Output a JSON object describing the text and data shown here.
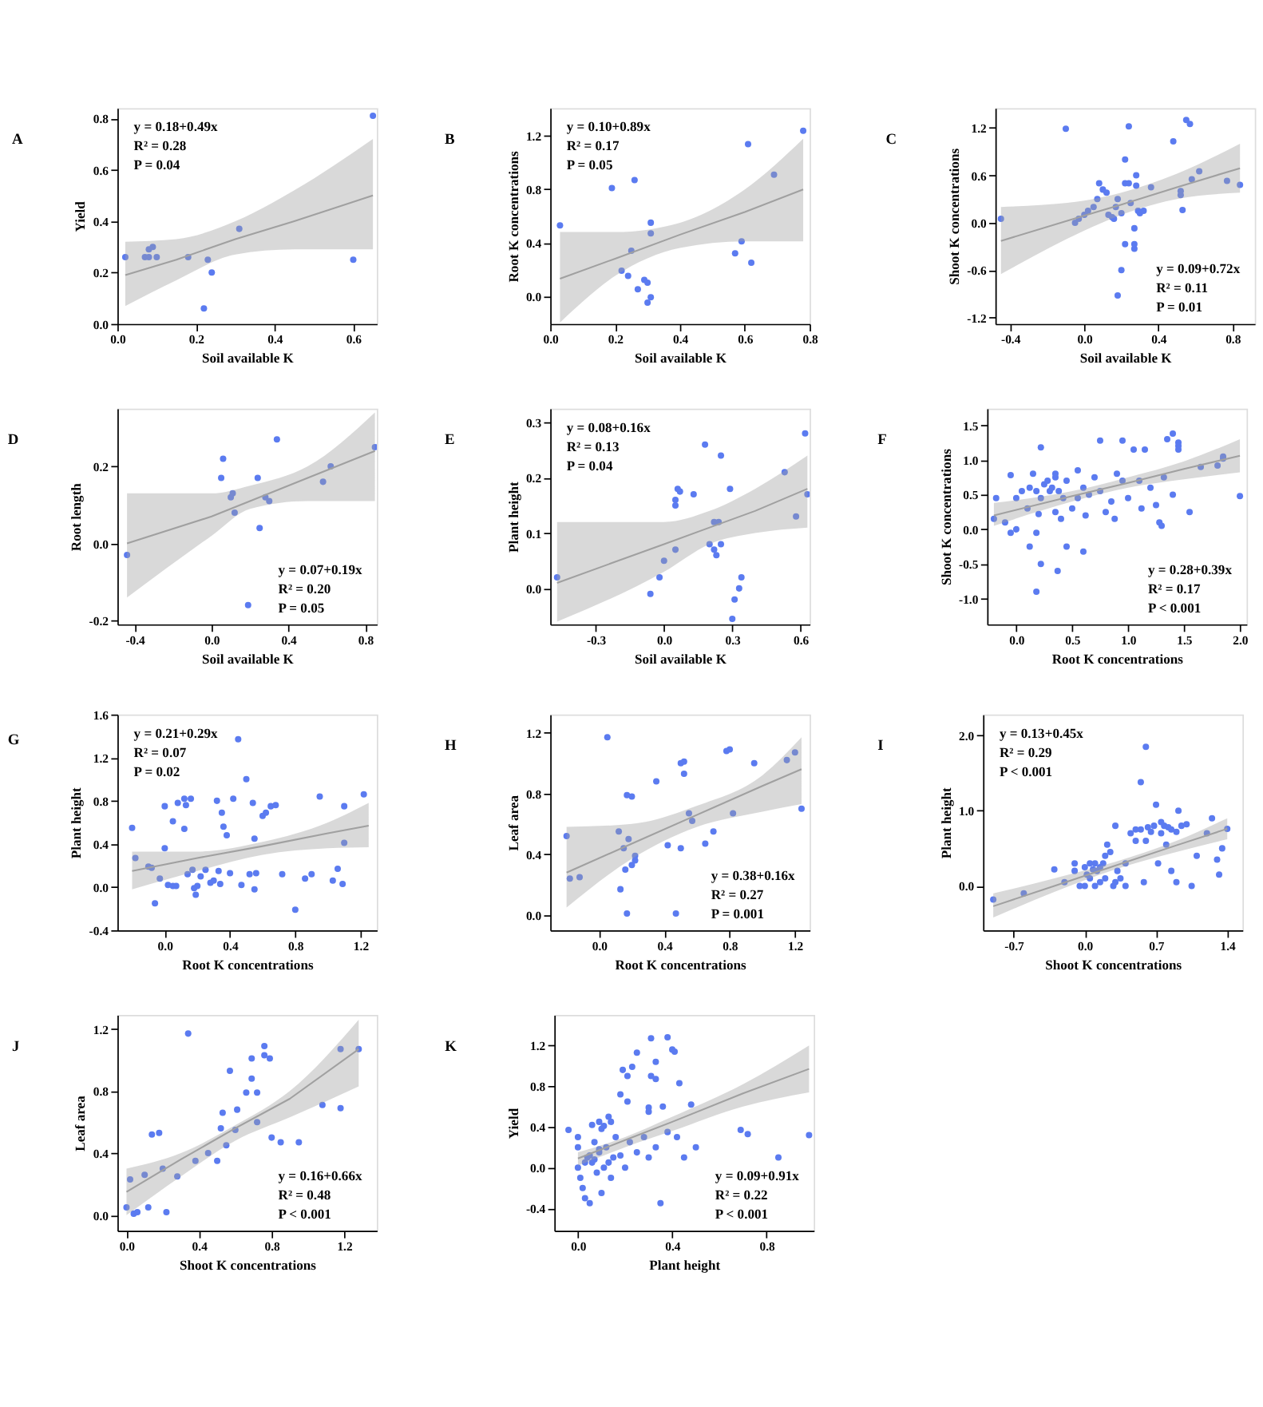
{
  "chart_data": [
    {
      "type": "scatter",
      "title": "A",
      "xlabel": "Soil available K",
      "ylabel": "Yield",
      "xlim": [
        0,
        0.66
      ],
      "ylim": [
        0,
        0.84
      ],
      "xticks": [
        {
          "value": 0,
          "label": "0.0"
        },
        0.2,
        0.4,
        0.6
      ],
      "yticks": [
        {
          "value": 0,
          "label": "0.0"
        },
        0.2,
        0.4,
        0.6,
        0.8
      ],
      "annotations": [
        "y = 0.18+0.49x",
        "R² = 0.28",
        "P = 0.04"
      ],
      "series": [
        {
          "type": "scatter",
          "color": "#5b7bf0",
          "x": [
            0.02,
            0.07,
            0.08,
            0.09,
            0.08,
            0.1,
            0.18,
            0.23,
            0.24,
            0.22,
            0.31,
            0.6,
            0.65
          ],
          "values": [
            0.26,
            0.26,
            0.29,
            0.3,
            0.26,
            0.26,
            0.26,
            0.25,
            0.2,
            0.06,
            0.37,
            0.25,
            0.81
          ]
        },
        {
          "type": "line",
          "color": "#a0a0a0",
          "x": [
            0.02,
            0.15,
            0.3,
            0.45,
            0.65
          ],
          "values": [
            0.19,
            0.25,
            0.33,
            0.4,
            0.5
          ],
          "lower": [
            0.07,
            0.17,
            0.27,
            0.29,
            0.29
          ],
          "upper": [
            0.32,
            0.33,
            0.4,
            0.52,
            0.72
          ]
        }
      ]
    },
    {
      "type": "scatter",
      "title": "B",
      "xlabel": "Soil available K",
      "ylabel": "Root K concentrations",
      "xlim": [
        0,
        0.8
      ],
      "ylim": [
        -0.21,
        1.41
      ],
      "xticks": [
        {
          "value": 0,
          "label": "0.0"
        },
        0.2,
        0.4,
        0.6,
        0.8
      ],
      "yticks": [
        {
          "value": 0,
          "label": "0.0"
        },
        0.4,
        0.8,
        1.2
      ],
      "annotations": [
        "y = 0.10+0.89x",
        "R² = 0.17",
        "P = 0.05"
      ],
      "series": [
        {
          "type": "scatter",
          "color": "#5b7bf0",
          "x": [
            0.03,
            0.19,
            0.26,
            0.22,
            0.24,
            0.25,
            0.27,
            0.29,
            0.3,
            0.3,
            0.31,
            0.31,
            0.31,
            0.57,
            0.59,
            0.61,
            0.62,
            0.69,
            0.78
          ],
          "values": [
            0.53,
            0.81,
            0.87,
            0.19,
            0.15,
            0.34,
            0.05,
            0.12,
            0.1,
            -0.05,
            -0.01,
            0.55,
            0.47,
            0.32,
            0.41,
            1.14,
            0.25,
            0.91,
            1.24
          ]
        },
        {
          "type": "line",
          "color": "#a0a0a0",
          "x": [
            0.03,
            0.2,
            0.4,
            0.6,
            0.78
          ],
          "values": [
            0.13,
            0.28,
            0.46,
            0.63,
            0.8
          ],
          "lower": [
            -0.2,
            0.15,
            0.36,
            0.41,
            0.41
          ],
          "upper": [
            0.48,
            0.48,
            0.55,
            0.8,
            1.18
          ]
        }
      ]
    },
    {
      "type": "scatter",
      "title": "C",
      "xlabel": "Soil available K",
      "ylabel": "Shoot K concentrations",
      "xlim": [
        -0.48,
        0.92
      ],
      "ylim": [
        -1.28,
        1.45
      ],
      "xticks": [
        -0.4,
        {
          "value": 0,
          "label": "0.0"
        },
        0.4,
        0.8
      ],
      "yticks": [
        -1.2,
        -0.6,
        {
          "value": 0,
          "label": "0.0"
        },
        0.6,
        1.2
      ],
      "annotations": [
        "y = 0.09+0.72x",
        "R² = 0.11",
        "P = 0.01"
      ],
      "series": [
        {
          "type": "scatter",
          "color": "#5b7bf0",
          "x": [
            -0.45,
            -0.1,
            -0.05,
            -0.03,
            0.0,
            0.02,
            0.05,
            0.07,
            0.08,
            0.1,
            0.12,
            0.13,
            0.15,
            0.16,
            0.17,
            0.18,
            0.18,
            0.2,
            0.2,
            0.22,
            0.22,
            0.24,
            0.24,
            0.25,
            0.27,
            0.27,
            0.27,
            0.28,
            0.28,
            0.29,
            0.3,
            0.32,
            0.22,
            0.36,
            0.48,
            0.52,
            0.52,
            0.53,
            0.55,
            0.57,
            0.58,
            0.62,
            0.77,
            0.84
          ],
          "values": [
            0.05,
            1.19,
            0.0,
            0.05,
            0.1,
            0.15,
            0.2,
            0.3,
            0.5,
            0.42,
            0.38,
            0.1,
            0.07,
            0.05,
            0.2,
            0.3,
            -0.92,
            -0.6,
            0.12,
            0.5,
            0.8,
            1.22,
            0.5,
            0.25,
            -0.33,
            -0.27,
            -0.07,
            0.6,
            0.47,
            0.15,
            0.12,
            0.15,
            -0.27,
            0.45,
            1.03,
            0.35,
            0.4,
            0.16,
            1.3,
            1.25,
            0.55,
            0.65,
            0.53,
            0.48
          ]
        },
        {
          "type": "line",
          "color": "#a0a0a0",
          "x": [
            -0.45,
            0.0,
            0.2,
            0.5,
            0.84
          ],
          "values": [
            -0.23,
            0.09,
            0.23,
            0.45,
            0.69
          ],
          "lower": [
            -0.65,
            -0.1,
            0.1,
            0.3,
            0.38
          ],
          "upper": [
            0.2,
            0.28,
            0.38,
            0.62,
            1.0
          ]
        }
      ]
    },
    {
      "type": "scatter",
      "title": "D",
      "xlabel": "Soil available K",
      "ylabel": "Root length",
      "xlim": [
        -0.49,
        0.86
      ],
      "ylim": [
        -0.21,
        0.35
      ],
      "xticks": [
        -0.4,
        {
          "value": 0,
          "label": "0.0"
        },
        0.4,
        0.8
      ],
      "yticks": [
        -0.2,
        {
          "value": 0,
          "label": "0.0"
        },
        0.2
      ],
      "annotations": [
        "y = 0.07+0.19x",
        "R² = 0.20",
        "P = 0.05"
      ],
      "series": [
        {
          "type": "scatter",
          "color": "#5b7bf0",
          "x": [
            -0.44,
            0.05,
            0.06,
            0.1,
            0.12,
            0.11,
            0.19,
            0.24,
            0.25,
            0.28,
            0.3,
            0.34,
            0.58,
            0.62,
            0.85
          ],
          "values": [
            -0.03,
            0.17,
            0.22,
            0.12,
            0.08,
            0.13,
            -0.16,
            0.17,
            0.04,
            0.12,
            0.11,
            0.27,
            0.16,
            0.2,
            0.25
          ]
        },
        {
          "type": "line",
          "color": "#a0a0a0",
          "x": [
            -0.44,
            0.0,
            0.2,
            0.5,
            0.85
          ],
          "values": [
            0.0,
            0.07,
            0.11,
            0.17,
            0.24
          ],
          "lower": [
            -0.14,
            0.02,
            0.09,
            0.11,
            0.11
          ],
          "upper": [
            0.13,
            0.13,
            0.15,
            0.2,
            0.34
          ]
        }
      ]
    },
    {
      "type": "scatter",
      "title": "E",
      "xlabel": "Soil available K",
      "ylabel": "Plant height",
      "xlim": [
        -0.5,
        0.64
      ],
      "ylim": [
        -0.065,
        0.325
      ],
      "xticks": [
        -0.3,
        {
          "value": 0,
          "label": "0.0"
        },
        0.3,
        0.6
      ],
      "yticks": [
        {
          "value": 0,
          "label": "0.0"
        },
        0.1,
        0.2,
        0.3
      ],
      "annotations": [
        "y = 0.08+0.16x",
        "R² = 0.13",
        "P = 0.04"
      ],
      "series": [
        {
          "type": "scatter",
          "color": "#5b7bf0",
          "x": [
            -0.47,
            -0.06,
            -0.02,
            0.0,
            0.05,
            0.05,
            0.06,
            0.07,
            0.05,
            0.13,
            0.18,
            0.2,
            0.22,
            0.22,
            0.23,
            0.24,
            0.25,
            0.25,
            0.29,
            0.31,
            0.33,
            0.34,
            0.3,
            0.53,
            0.58,
            0.62,
            0.63
          ],
          "values": [
            0.02,
            -0.01,
            0.02,
            0.05,
            0.15,
            0.16,
            0.18,
            0.175,
            0.07,
            0.17,
            0.26,
            0.08,
            0.07,
            0.12,
            0.06,
            0.12,
            0.24,
            0.08,
            0.18,
            -0.02,
            0.0,
            0.02,
            -0.055,
            0.21,
            0.13,
            0.28,
            0.17
          ]
        },
        {
          "type": "line",
          "color": "#a0a0a0",
          "x": [
            -0.47,
            0.0,
            0.2,
            0.4,
            0.63
          ],
          "values": [
            0.01,
            0.08,
            0.11,
            0.14,
            0.18
          ],
          "lower": [
            -0.06,
            0.03,
            0.08,
            0.1,
            0.11
          ],
          "upper": [
            0.12,
            0.12,
            0.14,
            0.18,
            0.24
          ]
        }
      ]
    },
    {
      "type": "scatter",
      "title": "F",
      "xlabel": "Root K concentrations",
      "ylabel": "Shoot K concentrations",
      "xlim": [
        -0.26,
        2.06
      ],
      "ylim": [
        -1.37,
        1.74
      ],
      "xticks": [
        {
          "value": 0,
          "label": "0.0"
        },
        0.5,
        {
          "value": 1,
          "label": "1.0"
        },
        1.5,
        {
          "value": 2,
          "label": "2.0"
        }
      ],
      "yticks": [
        {
          "value": -1,
          "label": "-1.0"
        },
        -0.5,
        {
          "value": 0,
          "label": "0.0"
        },
        0.5,
        {
          "value": 1,
          "label": "1.0"
        },
        1.5
      ],
      "annotations": [
        "y = 0.28+0.39x",
        "R² = 0.17",
        "P < 0.001"
      ],
      "series": [
        {
          "type": "scatter",
          "color": "#5b7bf0",
          "x": [
            -0.2,
            -0.18,
            -0.1,
            -0.05,
            -0.05,
            0.0,
            0.0,
            0.05,
            0.1,
            0.12,
            0.12,
            0.15,
            0.18,
            0.18,
            0.2,
            0.22,
            0.22,
            0.22,
            0.25,
            0.28,
            0.3,
            0.32,
            0.35,
            0.35,
            0.35,
            0.37,
            0.38,
            0.4,
            0.42,
            0.45,
            0.45,
            0.5,
            0.55,
            0.55,
            0.6,
            0.6,
            0.62,
            0.65,
            0.7,
            0.75,
            0.75,
            0.8,
            0.85,
            0.88,
            0.9,
            0.95,
            0.95,
            1.0,
            1.05,
            1.1,
            1.12,
            1.15,
            1.2,
            1.25,
            1.28,
            1.3,
            1.32,
            1.35,
            1.4,
            1.45,
            1.45,
            1.45,
            1.4,
            1.55,
            1.65,
            1.8,
            1.85,
            1.85,
            2.0,
            0.18
          ],
          "values": [
            0.15,
            0.45,
            0.1,
            0.78,
            -0.05,
            0.0,
            0.45,
            0.55,
            0.3,
            -0.25,
            0.6,
            0.8,
            0.55,
            -0.05,
            0.22,
            1.18,
            -0.5,
            0.45,
            0.65,
            0.7,
            0.55,
            0.6,
            0.8,
            0.75,
            0.25,
            -0.6,
            0.55,
            0.15,
            0.45,
            -0.25,
            0.7,
            0.3,
            0.45,
            0.85,
            -0.32,
            0.6,
            0.2,
            0.5,
            0.75,
            1.28,
            0.55,
            0.25,
            0.4,
            0.15,
            0.8,
            1.28,
            0.7,
            0.45,
            1.15,
            0.7,
            0.3,
            1.15,
            0.6,
            0.35,
            0.1,
            0.05,
            0.75,
            1.3,
            1.38,
            1.25,
            1.2,
            1.15,
            0.5,
            0.25,
            0.9,
            0.92,
            1.05,
            1.02,
            0.48,
            -0.9
          ]
        },
        {
          "type": "line",
          "color": "#a0a0a0",
          "x": [
            -0.2,
            0.5,
            1.0,
            1.5,
            2.0
          ],
          "values": [
            0.2,
            0.48,
            0.67,
            0.87,
            1.06
          ],
          "lower": [
            0.05,
            0.4,
            0.6,
            0.72,
            0.82
          ],
          "upper": [
            0.38,
            0.55,
            0.75,
            0.98,
            1.3
          ]
        }
      ]
    },
    {
      "type": "scatter",
      "title": "G",
      "xlabel": "Root K concentrations",
      "ylabel": "Plant height",
      "xlim": [
        -0.29,
        1.3
      ],
      "ylim": [
        -0.4,
        1.6
      ],
      "xticks": [
        {
          "value": 0,
          "label": "0.0"
        },
        0.4,
        0.8,
        1.2
      ],
      "yticks": [
        -0.4,
        {
          "value": 0,
          "label": "0.0"
        },
        0.4,
        0.8,
        1.2,
        1.6
      ],
      "annotations": [
        "y = 0.21+0.29x",
        "R² = 0.07",
        "P = 0.02"
      ],
      "series": [
        {
          "type": "scatter",
          "color": "#5b7bf0",
          "x": [
            -0.2,
            -0.18,
            -0.1,
            -0.08,
            -0.06,
            -0.03,
            0.0,
            0.02,
            0.05,
            0.07,
            0.0,
            0.05,
            0.08,
            0.12,
            0.13,
            0.12,
            0.14,
            0.16,
            0.17,
            0.18,
            0.19,
            0.2,
            0.22,
            0.25,
            0.28,
            0.3,
            0.32,
            0.33,
            0.34,
            0.35,
            0.4,
            0.42,
            0.45,
            0.47,
            0.5,
            0.52,
            0.54,
            0.55,
            0.55,
            0.56,
            0.6,
            0.62,
            0.65,
            0.68,
            0.72,
            0.8,
            0.86,
            0.9,
            0.95,
            1.03,
            1.06,
            1.09,
            1.1,
            1.1,
            1.22,
            0.36,
            0.38
          ],
          "values": [
            0.55,
            0.27,
            0.19,
            0.18,
            -0.15,
            0.08,
            0.36,
            0.02,
            0.01,
            0.01,
            0.75,
            0.61,
            0.78,
            0.82,
            0.76,
            0.54,
            0.12,
            0.82,
            0.16,
            -0.01,
            -0.07,
            0.01,
            0.1,
            0.16,
            0.04,
            0.06,
            0.8,
            0.15,
            0.03,
            0.69,
            0.13,
            0.82,
            1.37,
            0.02,
            1.0,
            0.12,
            0.78,
            0.45,
            -0.02,
            0.13,
            0.66,
            0.69,
            0.75,
            0.76,
            0.12,
            -0.21,
            0.08,
            0.12,
            0.84,
            0.06,
            0.17,
            0.03,
            0.75,
            0.41,
            0.86,
            0.56,
            0.48
          ]
        },
        {
          "type": "line",
          "color": "#a0a0a0",
          "x": [
            -0.2,
            0.2,
            0.6,
            1.0,
            1.25
          ],
          "values": [
            0.15,
            0.27,
            0.38,
            0.5,
            0.57
          ],
          "lower": [
            -0.02,
            0.15,
            0.3,
            0.36,
            0.37
          ],
          "upper": [
            0.33,
            0.33,
            0.42,
            0.6,
            0.78
          ]
        }
      ]
    },
    {
      "type": "scatter",
      "title": "H",
      "xlabel": "Root K concentrations",
      "ylabel": "Leaf area",
      "xlim": [
        -0.3,
        1.29
      ],
      "ylim": [
        -0.1,
        1.32
      ],
      "xticks": [
        {
          "value": 0,
          "label": "0.0"
        },
        0.4,
        0.8,
        1.2
      ],
      "yticks": [
        {
          "value": 0,
          "label": "0.0"
        },
        0.4,
        0.8,
        1.2
      ],
      "annotations": [
        "y = 0.38+0.16x",
        "R² = 0.27",
        "P = 0.001"
      ],
      "series": [
        {
          "type": "scatter",
          "color": "#5b7bf0",
          "x": [
            -0.2,
            -0.18,
            -0.12,
            0.05,
            0.12,
            0.15,
            0.17,
            0.18,
            0.2,
            0.2,
            0.22,
            0.22,
            0.13,
            0.16,
            0.17,
            0.47,
            0.35,
            0.5,
            0.52,
            0.52,
            0.5,
            0.55,
            0.57,
            0.42,
            0.65,
            0.78,
            0.8,
            0.82,
            0.95,
            1.15,
            1.2,
            1.24,
            0.7
          ],
          "values": [
            0.52,
            0.24,
            0.25,
            1.17,
            0.55,
            0.44,
            0.79,
            0.5,
            0.78,
            0.33,
            0.36,
            0.39,
            0.17,
            0.3,
            0.01,
            0.01,
            0.88,
            1.0,
            1.01,
            0.93,
            0.44,
            0.67,
            0.62,
            0.46,
            0.47,
            1.08,
            1.09,
            0.67,
            1.0,
            1.02,
            1.07,
            0.7,
            0.55
          ]
        },
        {
          "type": "line",
          "color": "#a0a0a0",
          "x": [
            -0.2,
            0.2,
            0.6,
            1.0,
            1.24
          ],
          "values": [
            0.28,
            0.47,
            0.66,
            0.85,
            0.96
          ],
          "lower": [
            0.05,
            0.37,
            0.58,
            0.68,
            0.73
          ],
          "upper": [
            0.58,
            0.6,
            0.72,
            0.92,
            1.17
          ]
        }
      ]
    },
    {
      "type": "scatter",
      "title": "I",
      "xlabel": "Shoot K concentrations",
      "ylabel": "Plant height",
      "xlim": [
        -1.0,
        1.55
      ],
      "ylim": [
        -0.59,
        2.28
      ],
      "xticks": [
        -0.7,
        {
          "value": 0,
          "label": "0.0"
        },
        0.7,
        1.4
      ],
      "yticks": [
        {
          "value": 0,
          "label": "0.0"
        },
        {
          "value": 1,
          "label": "1.0"
        },
        {
          "value": 2,
          "label": "2.0"
        }
      ],
      "annotations": [
        "y = 0.13+0.45x",
        "R² = 0.29",
        "P < 0.001"
      ],
      "series": [
        {
          "type": "scatter",
          "color": "#5b7bf0",
          "x": [
            -0.9,
            -0.6,
            -0.3,
            -0.2,
            -0.1,
            -0.05,
            0.0,
            0.02,
            0.05,
            0.05,
            0.08,
            0.1,
            0.1,
            0.12,
            0.15,
            0.15,
            0.18,
            0.2,
            0.22,
            0.2,
            0.25,
            0.28,
            0.3,
            0.32,
            0.35,
            0.4,
            0.45,
            0.5,
            0.55,
            0.6,
            0.5,
            0.55,
            0.58,
            0.6,
            0.62,
            0.65,
            0.68,
            0.7,
            0.72,
            0.75,
            0.75,
            0.78,
            0.8,
            0.82,
            0.85,
            0.85,
            0.9,
            0.92,
            0.95,
            1.0,
            1.05,
            1.1,
            1.2,
            1.25,
            1.3,
            1.32,
            1.35,
            1.4,
            0.0,
            0.3,
            0.4,
            0.9,
            -0.1
          ],
          "values": [
            -0.18,
            -0.1,
            0.22,
            0.05,
            0.2,
            0.0,
            0.25,
            0.15,
            0.3,
            0.1,
            0.22,
            0.3,
            0.0,
            0.2,
            0.25,
            0.05,
            0.3,
            0.4,
            0.55,
            0.1,
            0.45,
            0.0,
            0.8,
            0.2,
            0.1,
            0.3,
            0.7,
            0.6,
            1.38,
            1.85,
            0.75,
            0.75,
            0.05,
            0.6,
            0.78,
            0.72,
            0.8,
            1.08,
            0.3,
            0.7,
            0.85,
            0.8,
            0.55,
            0.78,
            0.2,
            0.75,
            0.72,
            1.0,
            0.8,
            0.82,
            0.0,
            0.4,
            0.7,
            0.9,
            0.35,
            0.15,
            0.5,
            0.76,
            0.0,
            0.05,
            0.0,
            0.05,
            0.3
          ]
        },
        {
          "type": "line",
          "color": "#a0a0a0",
          "x": [
            -0.9,
            -0.3,
            0.3,
            0.9,
            1.4
          ],
          "values": [
            -0.27,
            0.0,
            0.27,
            0.54,
            0.76
          ],
          "lower": [
            -0.42,
            -0.08,
            0.22,
            0.45,
            0.62
          ],
          "upper": [
            -0.1,
            0.1,
            0.32,
            0.6,
            0.9
          ]
        }
      ]
    },
    {
      "type": "scatter",
      "title": "J",
      "xlabel": "Shoot K concentrations",
      "ylabel": "Leaf area",
      "xlim": [
        -0.05,
        1.38
      ],
      "ylim": [
        -0.1,
        1.29
      ],
      "xticks": [
        {
          "value": 0,
          "label": "0.0"
        },
        0.4,
        0.8,
        1.2
      ],
      "yticks": [
        {
          "value": 0,
          "label": "0.0"
        },
        0.4,
        0.8,
        1.2
      ],
      "annotations": [
        "y = 0.16+0.66x",
        "R² = 0.48",
        "P < 0.001"
      ],
      "series": [
        {
          "type": "scatter",
          "color": "#5b7bf0",
          "x": [
            0.0,
            0.02,
            0.04,
            0.06,
            0.1,
            0.12,
            0.14,
            0.18,
            0.2,
            0.22,
            0.28,
            0.34,
            0.38,
            0.45,
            0.5,
            0.52,
            0.53,
            0.55,
            0.57,
            0.6,
            0.61,
            0.66,
            0.69,
            0.69,
            0.72,
            0.72,
            0.76,
            0.76,
            0.79,
            0.8,
            0.85,
            0.95,
            1.08,
            1.18,
            1.18,
            1.28
          ],
          "values": [
            0.05,
            0.23,
            0.01,
            0.02,
            0.26,
            0.05,
            0.52,
            0.53,
            0.3,
            0.02,
            0.25,
            1.17,
            0.35,
            0.4,
            0.35,
            0.56,
            0.66,
            0.45,
            0.93,
            0.55,
            0.68,
            0.79,
            0.88,
            1.01,
            0.79,
            0.6,
            1.09,
            1.03,
            1.01,
            0.5,
            0.47,
            0.47,
            0.71,
            0.69,
            1.07,
            1.07
          ]
        },
        {
          "type": "line",
          "color": "#a0a0a0",
          "x": [
            0.0,
            0.3,
            0.6,
            0.9,
            1.28
          ],
          "values": [
            0.15,
            0.36,
            0.56,
            0.75,
            1.07
          ],
          "lower": [
            0.0,
            0.25,
            0.48,
            0.63,
            0.83
          ],
          "upper": [
            0.3,
            0.4,
            0.58,
            0.8,
            1.26
          ]
        }
      ]
    },
    {
      "type": "scatter",
      "title": "K",
      "xlabel": "Plant height",
      "ylabel": "Yield",
      "xlim": [
        -0.1,
        1.0
      ],
      "ylim": [
        -0.62,
        1.5
      ],
      "xticks": [
        {
          "value": 0,
          "label": "0.0"
        },
        0.4,
        0.8
      ],
      "yticks": [
        -0.4,
        {
          "value": 0,
          "label": "0.0"
        },
        0.4,
        0.8,
        1.2
      ],
      "annotations": [
        "y = 0.09+0.91x",
        "R² = 0.22",
        "P < 0.001"
      ],
      "series": [
        {
          "type": "scatter",
          "color": "#5b7bf0",
          "x": [
            -0.04,
            0.06,
            0.09,
            0.1,
            0.11,
            0.13,
            0.14,
            0.18,
            0.19,
            0.21,
            0.21,
            0.23,
            0.25,
            0.3,
            0.3,
            0.31,
            0.31,
            0.33,
            0.33,
            0.36,
            0.38,
            0.4,
            0.41,
            0.43,
            0.48,
            0.69,
            0.98,
            0.0,
            0.0,
            0.0,
            0.01,
            0.02,
            0.03,
            0.04,
            0.05,
            0.06,
            0.07,
            0.08,
            0.09,
            0.1,
            0.11,
            0.12,
            0.13,
            0.14,
            0.15,
            0.16,
            0.18,
            0.2,
            0.22,
            0.25,
            0.28,
            0.3,
            0.33,
            0.35,
            0.38,
            0.42,
            0.45,
            0.72,
            0.85,
            0.5,
            0.03,
            0.05,
            0.07,
            0.09
          ],
          "values": [
            0.37,
            0.42,
            0.45,
            0.38,
            0.41,
            0.5,
            0.45,
            0.72,
            0.96,
            0.9,
            0.65,
            0.99,
            1.13,
            0.59,
            0.55,
            0.9,
            1.27,
            1.04,
            0.87,
            0.6,
            1.28,
            1.16,
            1.14,
            0.83,
            0.62,
            0.37,
            0.32,
            0.3,
            0.2,
            0.0,
            -0.1,
            -0.2,
            -0.3,
            0.1,
            -0.35,
            0.05,
            0.25,
            -0.05,
            0.15,
            -0.25,
            0.0,
            0.2,
            0.05,
            -0.1,
            0.1,
            0.3,
            0.12,
            0.0,
            0.25,
            0.15,
            0.3,
            0.1,
            0.2,
            -0.35,
            0.35,
            0.3,
            0.1,
            0.33,
            0.1,
            0.2,
            0.05,
            0.12,
            0.08,
            0.18
          ]
        },
        {
          "type": "line",
          "color": "#a0a0a0",
          "x": [
            0.0,
            0.2,
            0.4,
            0.7,
            0.98
          ],
          "values": [
            0.09,
            0.27,
            0.45,
            0.73,
            0.97
          ],
          "lower": [
            0.02,
            0.2,
            0.36,
            0.6,
            0.74
          ],
          "upper": [
            0.15,
            0.3,
            0.5,
            0.82,
            1.2
          ]
        }
      ]
    }
  ]
}
